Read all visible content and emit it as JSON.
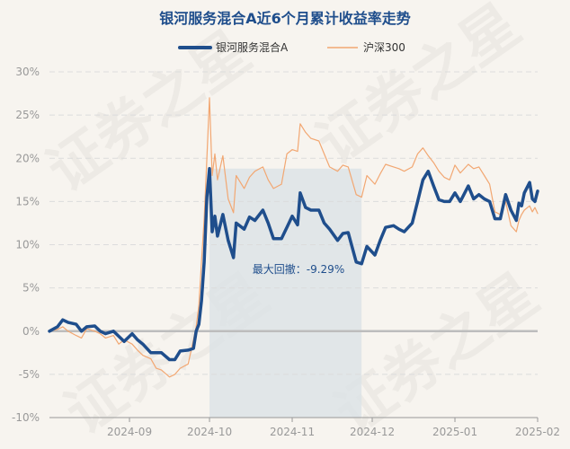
{
  "chart_data": {
    "type": "line",
    "title": "银河服务混合A近6个月累计收益率走势",
    "ylim": [
      -10,
      30
    ],
    "yticks": [
      -10,
      -5,
      0,
      5,
      10,
      15,
      20,
      25,
      30
    ],
    "ytick_labels": [
      "-10%",
      "-5%",
      "0%",
      "5%",
      "10%",
      "15%",
      "20%",
      "25%",
      "30%"
    ],
    "x_start": "2024-08-02",
    "x_end": "2025-02-01",
    "xticks": [
      "2024-09-01",
      "2024-10-01",
      "2024-11-01",
      "2024-12-01",
      "2025-01-01",
      "2025-02-01"
    ],
    "xtick_labels": [
      "2024-09",
      "2024-10",
      "2024-11",
      "2024-12",
      "2025-01",
      "2025-02"
    ],
    "grid": true,
    "legend_position": "top-center",
    "series": [
      {
        "name": "银河服务混合A",
        "color": "#1f4e8c",
        "points": [
          [
            "2024-08-02",
            0
          ],
          [
            "2024-08-05",
            0.5
          ],
          [
            "2024-08-07",
            1.3
          ],
          [
            "2024-08-09",
            1.0
          ],
          [
            "2024-08-12",
            0.8
          ],
          [
            "2024-08-14",
            0.0
          ],
          [
            "2024-08-16",
            0.5
          ],
          [
            "2024-08-19",
            0.6
          ],
          [
            "2024-08-21",
            0.0
          ],
          [
            "2024-08-23",
            -0.3
          ],
          [
            "2024-08-26",
            0.0
          ],
          [
            "2024-08-28",
            -0.6
          ],
          [
            "2024-08-30",
            -1.2
          ],
          [
            "2024-09-02",
            -0.3
          ],
          [
            "2024-09-04",
            -1.0
          ],
          [
            "2024-09-06",
            -1.5
          ],
          [
            "2024-09-09",
            -2.5
          ],
          [
            "2024-09-11",
            -2.5
          ],
          [
            "2024-09-13",
            -2.5
          ],
          [
            "2024-09-16",
            -3.3
          ],
          [
            "2024-09-18",
            -3.3
          ],
          [
            "2024-09-20",
            -2.3
          ],
          [
            "2024-09-23",
            -2.2
          ],
          [
            "2024-09-25",
            -2.0
          ],
          [
            "2024-09-26",
            0.0
          ],
          [
            "2024-09-27",
            0.8
          ],
          [
            "2024-09-28",
            3.5
          ],
          [
            "2024-09-29",
            8.0
          ],
          [
            "2024-09-30",
            15.5
          ],
          [
            "2024-10-01",
            18.8
          ],
          [
            "2024-10-02",
            11.5
          ],
          [
            "2024-10-03",
            13.3
          ],
          [
            "2024-10-04",
            11.0
          ],
          [
            "2024-10-06",
            13.5
          ],
          [
            "2024-10-08",
            10.5
          ],
          [
            "2024-10-10",
            8.5
          ],
          [
            "2024-10-11",
            12.5
          ],
          [
            "2024-10-14",
            11.8
          ],
          [
            "2024-10-16",
            13.2
          ],
          [
            "2024-10-18",
            12.8
          ],
          [
            "2024-10-21",
            14.0
          ],
          [
            "2024-10-23",
            12.5
          ],
          [
            "2024-10-25",
            10.7
          ],
          [
            "2024-10-28",
            10.7
          ],
          [
            "2024-10-30",
            12.0
          ],
          [
            "2024-11-01",
            13.3
          ],
          [
            "2024-11-03",
            12.3
          ],
          [
            "2024-11-04",
            16.0
          ],
          [
            "2024-11-06",
            14.3
          ],
          [
            "2024-11-08",
            14.0
          ],
          [
            "2024-11-11",
            14.0
          ],
          [
            "2024-11-13",
            12.5
          ],
          [
            "2024-11-15",
            11.8
          ],
          [
            "2024-11-18",
            10.5
          ],
          [
            "2024-11-20",
            11.3
          ],
          [
            "2024-11-22",
            11.4
          ],
          [
            "2024-11-25",
            8.0
          ],
          [
            "2024-11-27",
            7.8
          ],
          [
            "2024-11-29",
            9.8
          ],
          [
            "2024-12-02",
            8.8
          ],
          [
            "2024-12-04",
            10.5
          ],
          [
            "2024-12-06",
            12.0
          ],
          [
            "2024-12-09",
            12.2
          ],
          [
            "2024-12-11",
            11.8
          ],
          [
            "2024-12-13",
            11.5
          ],
          [
            "2024-12-16",
            12.5
          ],
          [
            "2024-12-18",
            15.0
          ],
          [
            "2024-12-20",
            17.5
          ],
          [
            "2024-12-22",
            18.5
          ],
          [
            "2024-12-24",
            16.8
          ],
          [
            "2024-12-26",
            15.2
          ],
          [
            "2024-12-28",
            15.0
          ],
          [
            "2024-12-30",
            15.0
          ],
          [
            "2025-01-01",
            16.0
          ],
          [
            "2025-01-03",
            15.0
          ],
          [
            "2025-01-06",
            16.8
          ],
          [
            "2025-01-08",
            15.3
          ],
          [
            "2025-01-10",
            15.8
          ],
          [
            "2025-01-12",
            15.3
          ],
          [
            "2025-01-14",
            15.0
          ],
          [
            "2025-01-16",
            13.0
          ],
          [
            "2025-01-18",
            13.0
          ],
          [
            "2025-01-20",
            15.8
          ],
          [
            "2025-01-22",
            14.0
          ],
          [
            "2025-01-24",
            12.8
          ],
          [
            "2025-01-25",
            14.8
          ],
          [
            "2025-01-26",
            14.5
          ],
          [
            "2025-01-27",
            16.0
          ],
          [
            "2025-01-29",
            17.2
          ],
          [
            "2025-01-30",
            15.3
          ],
          [
            "2025-01-31",
            15.0
          ],
          [
            "2025-02-01",
            16.2
          ]
        ]
      },
      {
        "name": "沪深300",
        "color": "#f2a772",
        "points": [
          [
            "2024-08-02",
            0
          ],
          [
            "2024-08-05",
            0.2
          ],
          [
            "2024-08-07",
            0.5
          ],
          [
            "2024-08-09",
            0.0
          ],
          [
            "2024-08-12",
            -0.5
          ],
          [
            "2024-08-14",
            -0.8
          ],
          [
            "2024-08-16",
            0.3
          ],
          [
            "2024-08-19",
            0.0
          ],
          [
            "2024-08-21",
            -0.3
          ],
          [
            "2024-08-23",
            -0.8
          ],
          [
            "2024-08-26",
            -0.5
          ],
          [
            "2024-08-28",
            -1.5
          ],
          [
            "2024-08-30",
            -1.0
          ],
          [
            "2024-09-02",
            -1.5
          ],
          [
            "2024-09-04",
            -2.2
          ],
          [
            "2024-09-06",
            -2.8
          ],
          [
            "2024-09-09",
            -3.2
          ],
          [
            "2024-09-11",
            -4.3
          ],
          [
            "2024-09-13",
            -4.5
          ],
          [
            "2024-09-16",
            -5.3
          ],
          [
            "2024-09-18",
            -5.0
          ],
          [
            "2024-09-20",
            -4.3
          ],
          [
            "2024-09-23",
            -3.8
          ],
          [
            "2024-09-25",
            -1.0
          ],
          [
            "2024-09-26",
            0.5
          ],
          [
            "2024-09-27",
            3.0
          ],
          [
            "2024-09-28",
            8.0
          ],
          [
            "2024-09-29",
            13.0
          ],
          [
            "2024-09-30",
            20.0
          ],
          [
            "2024-10-01",
            27.0
          ],
          [
            "2024-10-02",
            18.0
          ],
          [
            "2024-10-03",
            20.5
          ],
          [
            "2024-10-04",
            17.5
          ],
          [
            "2024-10-06",
            20.3
          ],
          [
            "2024-10-08",
            15.3
          ],
          [
            "2024-10-10",
            13.7
          ],
          [
            "2024-10-11",
            18.0
          ],
          [
            "2024-10-14",
            16.5
          ],
          [
            "2024-10-16",
            17.8
          ],
          [
            "2024-10-18",
            18.5
          ],
          [
            "2024-10-21",
            19.0
          ],
          [
            "2024-10-23",
            17.5
          ],
          [
            "2024-10-25",
            16.5
          ],
          [
            "2024-10-28",
            17.0
          ],
          [
            "2024-10-30",
            20.5
          ],
          [
            "2024-11-01",
            21.0
          ],
          [
            "2024-11-03",
            20.8
          ],
          [
            "2024-11-04",
            24.0
          ],
          [
            "2024-11-06",
            23.0
          ],
          [
            "2024-11-08",
            22.3
          ],
          [
            "2024-11-11",
            22.0
          ],
          [
            "2024-11-13",
            20.5
          ],
          [
            "2024-11-15",
            19.0
          ],
          [
            "2024-11-18",
            18.5
          ],
          [
            "2024-11-20",
            19.2
          ],
          [
            "2024-11-22",
            19.0
          ],
          [
            "2024-11-25",
            15.8
          ],
          [
            "2024-11-27",
            15.5
          ],
          [
            "2024-11-29",
            18.0
          ],
          [
            "2024-12-02",
            17.0
          ],
          [
            "2024-12-04",
            18.2
          ],
          [
            "2024-12-06",
            19.3
          ],
          [
            "2024-12-09",
            19.0
          ],
          [
            "2024-12-11",
            18.8
          ],
          [
            "2024-12-13",
            18.5
          ],
          [
            "2024-12-16",
            19.0
          ],
          [
            "2024-12-18",
            20.5
          ],
          [
            "2024-12-20",
            21.2
          ],
          [
            "2024-12-22",
            20.3
          ],
          [
            "2024-12-24",
            19.5
          ],
          [
            "2024-12-26",
            18.5
          ],
          [
            "2024-12-28",
            17.8
          ],
          [
            "2024-12-30",
            17.5
          ],
          [
            "2025-01-01",
            19.2
          ],
          [
            "2025-01-03",
            18.3
          ],
          [
            "2025-01-06",
            19.3
          ],
          [
            "2025-01-08",
            18.8
          ],
          [
            "2025-01-10",
            19.0
          ],
          [
            "2025-01-12",
            18.0
          ],
          [
            "2025-01-14",
            17.0
          ],
          [
            "2025-01-16",
            13.8
          ],
          [
            "2025-01-18",
            13.5
          ],
          [
            "2025-01-20",
            15.0
          ],
          [
            "2025-01-22",
            12.2
          ],
          [
            "2025-01-24",
            11.5
          ],
          [
            "2025-01-25",
            12.8
          ],
          [
            "2025-01-26",
            13.5
          ],
          [
            "2025-01-27",
            14.0
          ],
          [
            "2025-01-29",
            14.5
          ],
          [
            "2025-01-30",
            13.8
          ],
          [
            "2025-01-31",
            14.3
          ],
          [
            "2025-02-01",
            13.6
          ]
        ]
      }
    ],
    "annotations": [
      {
        "text": "最大回撤：-9.29%",
        "shaded_range": [
          "2024-10-01",
          "2024-11-27"
        ]
      }
    ]
  },
  "watermark": "证券之星"
}
